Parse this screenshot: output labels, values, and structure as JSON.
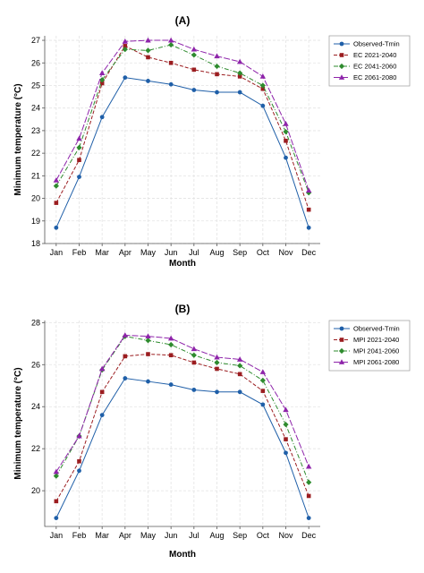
{
  "chart_data": [
    {
      "type": "line",
      "title": "(A)",
      "xlabel": "Month",
      "ylabel": "Minimum temperature (°C)",
      "categories": [
        "Jan",
        "Feb",
        "Mar",
        "Apr",
        "May",
        "Jun",
        "Jul",
        "Aug",
        "Sep",
        "Oct",
        "Nov",
        "Dec"
      ],
      "ylim": [
        18,
        27.2
      ],
      "yticks": [
        18,
        19,
        20,
        21,
        22,
        23,
        24,
        25,
        26,
        27
      ],
      "grid": true,
      "legend_position": "top-right",
      "series": [
        {
          "name": "Observed-Tmin",
          "color": "#1f5fa8",
          "marker": "circle",
          "dash": "solid",
          "values": [
            18.7,
            20.95,
            23.6,
            25.35,
            25.2,
            25.05,
            24.8,
            24.7,
            24.7,
            24.1,
            21.8,
            18.7
          ]
        },
        {
          "name": "EC 2021-2040",
          "color": "#9b1d20",
          "marker": "square",
          "dash": "dash",
          "values": [
            19.8,
            21.7,
            25.1,
            26.75,
            26.25,
            26.0,
            25.7,
            25.5,
            25.4,
            24.85,
            22.55,
            19.5
          ]
        },
        {
          "name": "EC 2041-2060",
          "color": "#2e8b2e",
          "marker": "diamond",
          "dash": "dashdot",
          "values": [
            20.55,
            22.25,
            25.25,
            26.6,
            26.55,
            26.8,
            26.35,
            25.85,
            25.55,
            25.0,
            22.95,
            20.25
          ]
        },
        {
          "name": "EC 2061-2080",
          "color": "#8e24aa",
          "marker": "triangle",
          "dash": "longdash",
          "values": [
            20.8,
            22.65,
            25.55,
            26.95,
            27.0,
            27.0,
            26.6,
            26.3,
            26.05,
            25.4,
            23.3,
            20.35
          ]
        }
      ]
    },
    {
      "type": "line",
      "title": "(B)",
      "xlabel": "Month",
      "ylabel": "Minimum temperature (°C)",
      "categories": [
        "Jan",
        "Feb",
        "Mar",
        "Apr",
        "May",
        "Jun",
        "Jul",
        "Aug",
        "Sep",
        "Oct",
        "Nov",
        "Dec"
      ],
      "ylim": [
        18.3,
        28.1
      ],
      "yticks": [
        20,
        22,
        24,
        26,
        28
      ],
      "grid": true,
      "legend_position": "top-right",
      "series": [
        {
          "name": "Observed-Tmin",
          "color": "#1f5fa8",
          "marker": "circle",
          "dash": "solid",
          "values": [
            18.7,
            20.95,
            23.6,
            25.35,
            25.2,
            25.05,
            24.8,
            24.7,
            24.7,
            24.1,
            21.8,
            18.7
          ]
        },
        {
          "name": "MPI 2021-2040",
          "color": "#9b1d20",
          "marker": "square",
          "dash": "dash",
          "values": [
            19.5,
            21.4,
            24.7,
            26.4,
            26.5,
            26.45,
            26.1,
            25.8,
            25.55,
            24.75,
            22.45,
            19.75
          ]
        },
        {
          "name": "MPI 2041-2060",
          "color": "#2e8b2e",
          "marker": "diamond",
          "dash": "dashdot",
          "values": [
            20.7,
            22.6,
            25.75,
            27.35,
            27.15,
            26.95,
            26.45,
            26.1,
            25.95,
            25.25,
            23.15,
            20.4
          ]
        },
        {
          "name": "MPI 2061-2080",
          "color": "#8e24aa",
          "marker": "triangle",
          "dash": "longdash",
          "values": [
            20.9,
            22.6,
            25.8,
            27.4,
            27.35,
            27.25,
            26.75,
            26.35,
            26.25,
            25.65,
            23.85,
            21.15
          ]
        }
      ]
    }
  ]
}
